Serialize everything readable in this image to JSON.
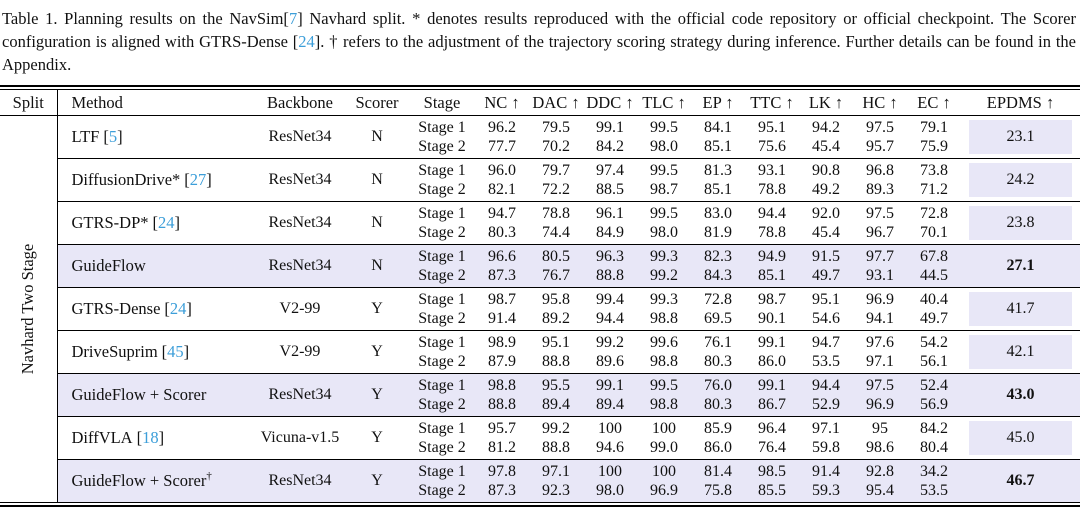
{
  "caption": {
    "segments": [
      {
        "text": "Table 1.  Planning results on the NavSim[",
        "cite": false
      },
      {
        "text": "7",
        "cite": true
      },
      {
        "text": "] Navhard split.  * denotes results reproduced with the official code repository or official checkpoint. The Scorer configuration is aligned with GTRS-Dense [",
        "cite": false
      },
      {
        "text": "24",
        "cite": true
      },
      {
        "text": "]. † refers to the adjustment of the trajectory scoring strategy during inference. Further details can be found in the Appendix.",
        "cite": false
      }
    ]
  },
  "table": {
    "columns": [
      "Split",
      "Method",
      "Backbone",
      "Scorer",
      "Stage",
      "NC ↑",
      "DAC ↑",
      "DDC ↑",
      "TLC ↑",
      "EP ↑",
      "TTC ↑",
      "LK ↑",
      "HC ↑",
      "EC ↑",
      "EPDMS ↑"
    ],
    "split_label": "Navhard Two Stage",
    "stage_labels": [
      "Stage 1",
      "Stage 2"
    ],
    "cite_brackets": [
      "[",
      "]"
    ],
    "rows": [
      {
        "method": "LTF",
        "sup": "",
        "cite": "5",
        "backbone": "ResNet34",
        "scorer": "N",
        "highlight": false,
        "stage1": [
          "96.2",
          "79.5",
          "99.1",
          "99.5",
          "84.1",
          "95.1",
          "94.2",
          "97.5",
          "79.1"
        ],
        "stage2": [
          "77.7",
          "70.2",
          "84.2",
          "98.0",
          "85.1",
          "75.6",
          "45.4",
          "95.7",
          "75.9"
        ],
        "epdms": "23.1",
        "epdms_bold": false
      },
      {
        "method": "DiffusionDrive*",
        "sup": "",
        "cite": "27",
        "backbone": "ResNet34",
        "scorer": "N",
        "highlight": false,
        "stage1": [
          "96.0",
          "79.7",
          "97.4",
          "99.5",
          "81.3",
          "93.1",
          "90.8",
          "96.8",
          "73.8"
        ],
        "stage2": [
          "82.1",
          "72.2",
          "88.5",
          "98.7",
          "85.1",
          "78.8",
          "49.2",
          "89.3",
          "71.2"
        ],
        "epdms": "24.2",
        "epdms_bold": false
      },
      {
        "method": "GTRS-DP*",
        "sup": "",
        "cite": "24",
        "backbone": "ResNet34",
        "scorer": "N",
        "highlight": false,
        "stage1": [
          "94.7",
          "78.8",
          "96.1",
          "99.5",
          "83.0",
          "94.4",
          "92.0",
          "97.5",
          "72.8"
        ],
        "stage2": [
          "80.3",
          "74.4",
          "84.9",
          "98.0",
          "81.9",
          "78.8",
          "45.4",
          "96.7",
          "70.1"
        ],
        "epdms": "23.8",
        "epdms_bold": false
      },
      {
        "method": "GuideFlow",
        "sup": "",
        "cite": null,
        "backbone": "ResNet34",
        "scorer": "N",
        "highlight": true,
        "stage1": [
          "96.6",
          "80.5",
          "96.3",
          "99.3",
          "82.3",
          "94.9",
          "91.5",
          "97.7",
          "67.8"
        ],
        "stage2": [
          "87.3",
          "76.7",
          "88.8",
          "99.2",
          "84.3",
          "85.1",
          "49.7",
          "93.1",
          "44.5"
        ],
        "epdms": "27.1",
        "epdms_bold": true
      },
      {
        "method": "GTRS-Dense",
        "sup": "",
        "cite": "24",
        "backbone": "V2-99",
        "scorer": "Y",
        "highlight": false,
        "stage1": [
          "98.7",
          "95.8",
          "99.4",
          "99.3",
          "72.8",
          "98.7",
          "95.1",
          "96.9",
          "40.4"
        ],
        "stage2": [
          "91.4",
          "89.2",
          "94.4",
          "98.8",
          "69.5",
          "90.1",
          "54.6",
          "94.1",
          "49.7"
        ],
        "epdms": "41.7",
        "epdms_bold": false
      },
      {
        "method": "DriveSuprim",
        "sup": "",
        "cite": "45",
        "backbone": "V2-99",
        "scorer": "Y",
        "highlight": false,
        "stage1": [
          "98.9",
          "95.1",
          "99.2",
          "99.6",
          "76.1",
          "99.1",
          "94.7",
          "97.6",
          "54.2"
        ],
        "stage2": [
          "87.9",
          "88.8",
          "89.6",
          "98.8",
          "80.3",
          "86.0",
          "53.5",
          "97.1",
          "56.1"
        ],
        "epdms": "42.1",
        "epdms_bold": false
      },
      {
        "method": "GuideFlow + Scorer",
        "sup": "",
        "cite": null,
        "backbone": "ResNet34",
        "scorer": "Y",
        "highlight": true,
        "stage1": [
          "98.8",
          "95.5",
          "99.1",
          "99.5",
          "76.0",
          "99.1",
          "94.4",
          "97.5",
          "52.4"
        ],
        "stage2": [
          "88.8",
          "89.4",
          "89.4",
          "98.8",
          "80.3",
          "86.7",
          "52.9",
          "96.9",
          "56.9"
        ],
        "epdms": "43.0",
        "epdms_bold": true
      },
      {
        "method": "DiffVLA",
        "sup": "",
        "cite": "18",
        "backbone": "Vicuna-v1.5",
        "scorer": "Y",
        "highlight": false,
        "stage1": [
          "95.7",
          "99.2",
          "100",
          "100",
          "85.9",
          "96.4",
          "97.1",
          "95",
          "84.2"
        ],
        "stage2": [
          "81.2",
          "88.8",
          "94.6",
          "99.0",
          "86.0",
          "76.4",
          "59.8",
          "98.6",
          "80.4"
        ],
        "epdms": "45.0",
        "epdms_bold": false
      },
      {
        "method": "GuideFlow + Scorer",
        "sup": "†",
        "cite": null,
        "backbone": "ResNet34",
        "scorer": "Y",
        "highlight": true,
        "stage1": [
          "97.8",
          "97.1",
          "100",
          "100",
          "81.4",
          "98.5",
          "91.4",
          "92.8",
          "34.2"
        ],
        "stage2": [
          "87.3",
          "92.3",
          "98.0",
          "96.9",
          "75.8",
          "85.5",
          "59.3",
          "95.4",
          "53.5"
        ],
        "epdms": "46.7",
        "epdms_bold": true
      }
    ]
  }
}
